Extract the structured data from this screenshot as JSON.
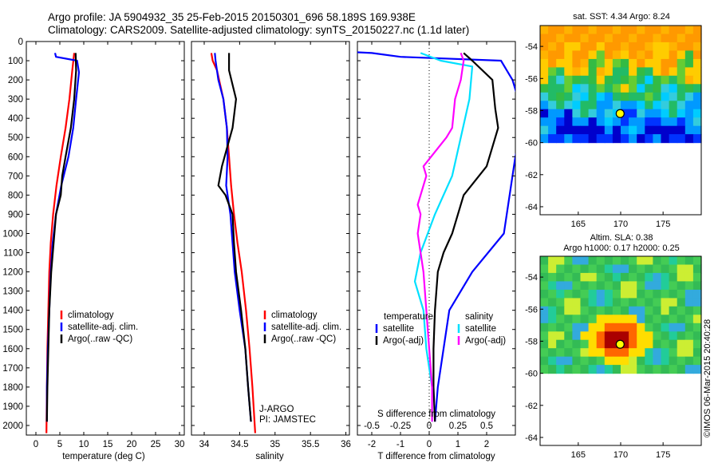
{
  "header": {
    "line1": "Argo profile: JA 5904932_35 25-Feb-2015 20150301_696 58.189S 169.938E",
    "line2": "Climatology: CARS2009. Satellite-adjusted climatology: synTS_20150227.nc (1.1d later)"
  },
  "depth_ticks": [
    "0",
    "100",
    "200",
    "300",
    "400",
    "500",
    "600",
    "700",
    "800",
    "900",
    "1000",
    "1100",
    "1200",
    "1300",
    "1400",
    "1500",
    "1600",
    "1700",
    "1800",
    "1900",
    "2000"
  ],
  "colors": {
    "climatology": "#ff0000",
    "satellite": "#0000ff",
    "argo": "#000000",
    "argo_s": "#ff00ff",
    "sat_s": "#00e0ff"
  },
  "chart_data": [
    {
      "type": "line",
      "xlabel": "temperature (deg C)",
      "xticks": [
        "0",
        "5",
        "10",
        "15",
        "20",
        "25",
        "30"
      ],
      "xlim": [
        -2,
        31
      ],
      "ylim": [
        2050,
        0
      ],
      "legend": [
        "climatology",
        "satellite-adj. clim.",
        "Argo(..raw -QC)"
      ],
      "series": [
        {
          "name": "climatology",
          "color": "#ff0000",
          "points": [
            [
              8,
              60
            ],
            [
              7.6,
              150
            ],
            [
              7,
              300
            ],
            [
              6.2,
              450
            ],
            [
              5.2,
              600
            ],
            [
              4.3,
              750
            ],
            [
              3.6,
              900
            ],
            [
              3.1,
              1050
            ],
            [
              2.8,
              1200
            ],
            [
              2.6,
              1400
            ],
            [
              2.4,
              1600
            ],
            [
              2.3,
              1800
            ],
            [
              2.2,
              2040
            ]
          ]
        },
        {
          "name": "satellite-adj. clim.",
          "color": "#0000ff",
          "points": [
            [
              4,
              60
            ],
            [
              4.2,
              80
            ],
            [
              8.6,
              100
            ],
            [
              9,
              160
            ],
            [
              8.4,
              300
            ],
            [
              7.8,
              450
            ],
            [
              6.8,
              600
            ],
            [
              5.3,
              750
            ],
            [
              4.2,
              900
            ],
            [
              3.5,
              1050
            ],
            [
              3.1,
              1200
            ],
            [
              2.8,
              1400
            ],
            [
              2.5,
              1600
            ],
            [
              2.3,
              1800
            ],
            [
              2.3,
              1980
            ]
          ]
        },
        {
          "name": "Argo(..raw -QC)",
          "color": "#000000",
          "points": [
            [
              8.3,
              60
            ],
            [
              8.4,
              150
            ],
            [
              8,
              300
            ],
            [
              7.3,
              450
            ],
            [
              6.2,
              600
            ],
            [
              5.5,
              700
            ],
            [
              5.2,
              800
            ],
            [
              4.2,
              900
            ],
            [
              3.7,
              1050
            ],
            [
              3.2,
              1200
            ],
            [
              2.8,
              1400
            ],
            [
              2.6,
              1600
            ],
            [
              2.4,
              1800
            ],
            [
              2.3,
              1980
            ]
          ]
        }
      ]
    },
    {
      "type": "line",
      "xlabel": "salinity",
      "xticks": [
        "34",
        "34.5",
        "35",
        "35.5",
        "36"
      ],
      "xlim": [
        33.82,
        36.05
      ],
      "ylim": [
        2050,
        0
      ],
      "legend": [
        "climatology",
        "satellite-adj. clim.",
        "Argo(..raw -QC)"
      ],
      "annotations": [
        "J-ARGO",
        "PI: JAMSTEC"
      ],
      "series": [
        {
          "name": "climatology",
          "color": "#ff0000",
          "points": [
            [
              34.1,
              60
            ],
            [
              34.12,
              100
            ],
            [
              34.18,
              150
            ],
            [
              34.27,
              300
            ],
            [
              34.32,
              450
            ],
            [
              34.35,
              600
            ],
            [
              34.38,
              750
            ],
            [
              34.42,
              900
            ],
            [
              34.47,
              1050
            ],
            [
              34.53,
              1200
            ],
            [
              34.59,
              1400
            ],
            [
              34.64,
              1600
            ],
            [
              34.68,
              1800
            ],
            [
              34.72,
              2040
            ]
          ]
        },
        {
          "name": "satellite-adj. clim.",
          "color": "#0000ff",
          "points": [
            [
              34.15,
              60
            ],
            [
              34.16,
              100
            ],
            [
              34.2,
              200
            ],
            [
              34.27,
              300
            ],
            [
              34.32,
              450
            ],
            [
              34.33,
              600
            ],
            [
              34.31,
              750
            ],
            [
              34.37,
              900
            ],
            [
              34.4,
              1050
            ],
            [
              34.43,
              1200
            ],
            [
              34.5,
              1400
            ],
            [
              34.58,
              1600
            ],
            [
              34.62,
              1800
            ],
            [
              34.66,
              1980
            ]
          ]
        },
        {
          "name": "Argo(..raw -QC)",
          "color": "#000000",
          "points": [
            [
              34.35,
              60
            ],
            [
              34.35,
              150
            ],
            [
              34.45,
              300
            ],
            [
              34.4,
              450
            ],
            [
              34.25,
              650
            ],
            [
              34.2,
              750
            ],
            [
              34.3,
              800
            ],
            [
              34.4,
              900
            ],
            [
              34.42,
              1050
            ],
            [
              34.45,
              1200
            ],
            [
              34.52,
              1400
            ],
            [
              34.58,
              1600
            ],
            [
              34.62,
              1800
            ],
            [
              34.66,
              1980
            ]
          ]
        }
      ]
    },
    {
      "type": "line",
      "xlabel": "T difference from climatology",
      "xticks": [
        "-2",
        "-1",
        "0",
        "1",
        "2"
      ],
      "xlim": [
        -2.5,
        3
      ],
      "top_label": "S difference from climatology",
      "top_ticks": [
        {
          "v": "-0.5",
          "x": -2
        },
        {
          "v": "-0.25",
          "x": -1
        },
        {
          "v": "0",
          "x": 0
        },
        {
          "v": "0.25",
          "x": 1
        },
        {
          "v": "0.5",
          "x": 2
        }
      ],
      "ylim": [
        2050,
        0
      ],
      "legend_headers": [
        "temperature",
        "salinity"
      ],
      "legend": [
        "satellite",
        "Argo(-adj)",
        "satellite",
        "Argo(-adj)"
      ],
      "series": [
        {
          "name": "satellite",
          "color": "#0000ff",
          "points": [
            [
              -3.3,
              50
            ],
            [
              -2,
              60
            ],
            [
              -1,
              80
            ],
            [
              2.5,
              100
            ],
            [
              2.9,
              200
            ],
            [
              3.1,
              300
            ],
            [
              3.3,
              400
            ],
            [
              3,
              600
            ],
            [
              2.8,
              800
            ],
            [
              2.6,
              1000
            ],
            [
              1.5,
              1200
            ],
            [
              0.7,
              1400
            ],
            [
              0.5,
              1600
            ],
            [
              0.3,
              1800
            ],
            [
              0.2,
              1980
            ]
          ]
        },
        {
          "name": "Argo(-adj)",
          "color": "#000000",
          "points": [
            [
              1.2,
              60
            ],
            [
              1.5,
              100
            ],
            [
              2.2,
              200
            ],
            [
              2.3,
              350
            ],
            [
              2.4,
              450
            ],
            [
              2,
              650
            ],
            [
              1.2,
              800
            ],
            [
              1,
              900
            ],
            [
              0.8,
              1000
            ],
            [
              0.5,
              1100
            ],
            [
              0.3,
              1200
            ],
            [
              0.2,
              1400
            ],
            [
              0.15,
              1600
            ],
            [
              0.15,
              1800
            ],
            [
              0.2,
              1980
            ]
          ]
        },
        {
          "name": "satellite",
          "color": "#00e0ff",
          "points": [
            [
              -0.3,
              60
            ],
            [
              0.4,
              100
            ],
            [
              1.5,
              130
            ],
            [
              1.4,
              300
            ],
            [
              1.1,
              500
            ],
            [
              0.8,
              700
            ],
            [
              0.2,
              900
            ],
            [
              -0.3,
              1100
            ],
            [
              -0.5,
              1250
            ],
            [
              -0.2,
              1400
            ],
            [
              -0.1,
              1600
            ],
            [
              0.1,
              1800
            ],
            [
              0.1,
              1980
            ]
          ]
        },
        {
          "name": "Argo(-adj)",
          "color": "#ff00ff",
          "points": [
            [
              1.1,
              60
            ],
            [
              1.2,
              100
            ],
            [
              1.1,
              200
            ],
            [
              0.9,
              300
            ],
            [
              0.8,
              450
            ],
            [
              0.6,
              500
            ],
            [
              -0.2,
              650
            ],
            [
              -0.1,
              700
            ],
            [
              -0.4,
              850
            ],
            [
              -0.3,
              900
            ],
            [
              -0.4,
              1000
            ],
            [
              -0.3,
              1100
            ],
            [
              -0.2,
              1200
            ],
            [
              -0.1,
              1400
            ],
            [
              0,
              1600
            ],
            [
              0.1,
              1800
            ],
            [
              0.1,
              1980
            ]
          ]
        }
      ]
    },
    {
      "type": "heatmap",
      "title": "sat. SST: 4.34  Argo: 8.24",
      "xticks": [
        "165",
        "170",
        "175"
      ],
      "yticks": [
        "-54",
        "-56",
        "-58",
        "-60",
        "-62",
        "-64"
      ],
      "xlim": [
        160.5,
        179.5
      ],
      "ylim": [
        -64.5,
        -52.7
      ],
      "data_bottom": -60,
      "marker": [
        169.938,
        -58.189
      ]
    },
    {
      "type": "heatmap",
      "title": "Altim. SLA: 0.38",
      "subtitle": "Argo h1000: 0.17 h2000: 0.25",
      "xticks": [
        "165",
        "170",
        "175"
      ],
      "yticks": [
        "-54",
        "-56",
        "-58",
        "-60",
        "-62",
        "-64"
      ],
      "xlim": [
        160.5,
        179.5
      ],
      "ylim": [
        -64.5,
        -52.7
      ],
      "data_bottom": -60,
      "marker": [
        169.938,
        -58.189
      ]
    }
  ],
  "credit": "©IMOS 06-Mar-2015 20:40:28"
}
